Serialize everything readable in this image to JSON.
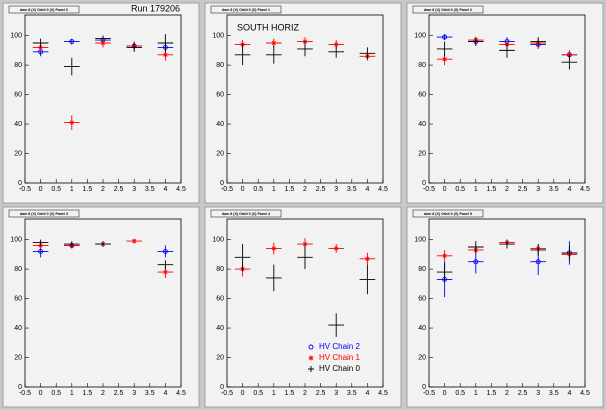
{
  "chart_data": [
    {
      "type": "errorbar",
      "title": "dam 8 (X) Orbit 0 (X) Panel 0",
      "annotations": [
        "Run 179206"
      ],
      "x": [
        0,
        1,
        2,
        3,
        4
      ],
      "xerr": 0.25,
      "xlim": [
        -0.5,
        4.5
      ],
      "xticks": [
        -0.5,
        0,
        0.5,
        1,
        1.5,
        2,
        2.5,
        3,
        3.5,
        4,
        4.5
      ],
      "ylim": [
        0,
        114
      ],
      "yticks": [
        0,
        20,
        40,
        60,
        80,
        100
      ],
      "legend": false,
      "series": [
        {
          "name": "HV Chain 2",
          "color": "#0000ff",
          "marker": "circle",
          "values": [
            89,
            96,
            97,
            93,
            92
          ],
          "errors": [
            3,
            2,
            2,
            3,
            4
          ]
        },
        {
          "name": "HV Chain 1",
          "color": "#ff0000",
          "marker": "star",
          "values": [
            92,
            41,
            95,
            93,
            87
          ],
          "errors": [
            3,
            5,
            3,
            3,
            4
          ]
        },
        {
          "name": "HV Chain 0",
          "color": "#000000",
          "marker": "none",
          "values": [
            95,
            79,
            98,
            92,
            95
          ],
          "errors": [
            3,
            6,
            2,
            3,
            6
          ]
        }
      ]
    },
    {
      "type": "errorbar",
      "title": "dam 8 (X) Orbit 0 (X) Panel 1",
      "annotations": [
        "SOUTH HORIZ"
      ],
      "x": [
        0,
        1,
        2,
        3,
        4
      ],
      "xerr": 0.25,
      "xlim": [
        -0.5,
        4.5
      ],
      "xticks": [
        -0.5,
        0,
        0.5,
        1,
        1.5,
        2,
        2.5,
        3,
        3.5,
        4,
        4.5
      ],
      "ylim": [
        0,
        114
      ],
      "yticks": [
        0,
        20,
        40,
        60,
        80,
        100
      ],
      "legend": false,
      "series": [
        {
          "name": "HV Chain 2",
          "color": "#0000ff",
          "marker": "circle",
          "values": [
            null,
            null,
            null,
            null,
            null
          ],
          "errors": [
            null,
            null,
            null,
            null,
            null
          ]
        },
        {
          "name": "HV Chain 1",
          "color": "#ff0000",
          "marker": "star",
          "values": [
            94,
            95,
            96,
            94,
            86
          ],
          "errors": [
            3,
            3,
            3,
            3,
            3
          ]
        },
        {
          "name": "HV Chain 0",
          "color": "#000000",
          "marker": "none",
          "values": [
            87,
            87,
            91,
            89,
            88
          ],
          "errors": [
            7,
            6,
            5,
            4,
            4
          ]
        }
      ]
    },
    {
      "type": "errorbar",
      "title": "dam 8 (X) Orbit 0 (X) Panel 2",
      "annotations": [],
      "x": [
        0,
        1,
        2,
        3,
        4
      ],
      "xerr": 0.25,
      "xlim": [
        -0.5,
        4.5
      ],
      "xticks": [
        -0.5,
        0,
        0.5,
        1,
        1.5,
        2,
        2.5,
        3,
        3.5,
        4,
        4.5
      ],
      "ylim": [
        0,
        114
      ],
      "yticks": [
        0,
        20,
        40,
        60,
        80,
        100
      ],
      "legend": false,
      "series": [
        {
          "name": "HV Chain 2",
          "color": "#0000ff",
          "marker": "circle",
          "values": [
            99,
            96,
            96,
            94,
            87
          ],
          "errors": [
            2,
            2,
            3,
            3,
            3
          ]
        },
        {
          "name": "HV Chain 1",
          "color": "#ff0000",
          "marker": "star",
          "values": [
            84,
            97,
            94,
            95,
            87
          ],
          "errors": [
            4,
            2,
            3,
            3,
            3
          ]
        },
        {
          "name": "HV Chain 0",
          "color": "#000000",
          "marker": "none",
          "values": [
            91,
            96,
            90,
            96,
            82
          ],
          "errors": [
            5,
            3,
            5,
            3,
            5
          ]
        }
      ]
    },
    {
      "type": "errorbar",
      "title": "dam 8 (X) Orbit 0 (X) Panel 3",
      "annotations": [],
      "x": [
        0,
        1,
        2,
        3,
        4
      ],
      "xerr": 0.25,
      "xlim": [
        -0.5,
        4.5
      ],
      "xticks": [
        -0.5,
        0,
        0.5,
        1,
        1.5,
        2,
        2.5,
        3,
        3.5,
        4,
        4.5
      ],
      "ylim": [
        0,
        114
      ],
      "yticks": [
        0,
        20,
        40,
        60,
        80,
        100
      ],
      "legend": false,
      "series": [
        {
          "name": "HV Chain 2",
          "color": "#0000ff",
          "marker": "circle",
          "values": [
            92,
            96,
            null,
            null,
            92
          ],
          "errors": [
            4,
            2,
            null,
            null,
            4
          ]
        },
        {
          "name": "HV Chain 1",
          "color": "#ff0000",
          "marker": "star",
          "values": [
            96,
            96,
            97,
            99,
            78
          ],
          "errors": [
            2,
            2,
            2,
            1,
            4
          ]
        },
        {
          "name": "HV Chain 0",
          "color": "#000000",
          "marker": "none",
          "values": [
            98,
            97,
            97,
            null,
            83
          ],
          "errors": [
            2,
            2,
            2,
            null,
            3
          ]
        }
      ]
    },
    {
      "type": "errorbar",
      "title": "dam 8 (X) Orbit 0 (X) Panel 4",
      "annotations": [],
      "x": [
        0,
        1,
        2,
        3,
        4
      ],
      "xerr": 0.25,
      "xlim": [
        -0.5,
        4.5
      ],
      "xticks": [
        -0.5,
        0,
        0.5,
        1,
        1.5,
        2,
        2.5,
        3,
        3.5,
        4,
        4.5
      ],
      "ylim": [
        0,
        114
      ],
      "yticks": [
        0,
        20,
        40,
        60,
        80,
        100
      ],
      "legend": true,
      "series": [
        {
          "name": "HV Chain 2",
          "color": "#0000ff",
          "marker": "circle",
          "values": [
            null,
            null,
            null,
            null,
            null
          ],
          "errors": [
            null,
            null,
            null,
            null,
            null
          ]
        },
        {
          "name": "HV Chain 1",
          "color": "#ff0000",
          "marker": "star",
          "values": [
            80,
            94,
            97,
            94,
            87
          ],
          "errors": [
            5,
            4,
            4,
            3,
            4
          ]
        },
        {
          "name": "HV Chain 0",
          "color": "#000000",
          "marker": "none",
          "values": [
            88,
            74,
            88,
            42,
            73
          ],
          "errors": [
            9,
            9,
            8,
            8,
            10
          ]
        }
      ]
    },
    {
      "type": "errorbar",
      "title": "dam 8 (X) Orbit 0 (X) Panel 5",
      "annotations": [],
      "x": [
        0,
        1,
        2,
        3,
        4
      ],
      "xerr": 0.25,
      "xlim": [
        -0.5,
        4.5
      ],
      "xticks": [
        -0.5,
        0,
        0.5,
        1,
        1.5,
        2,
        2.5,
        3,
        3.5,
        4,
        4.5
      ],
      "ylim": [
        0,
        114
      ],
      "yticks": [
        0,
        20,
        40,
        60,
        80,
        100
      ],
      "legend": false,
      "series": [
        {
          "name": "HV Chain 2",
          "color": "#0000ff",
          "marker": "circle",
          "values": [
            73,
            85,
            null,
            85,
            91
          ],
          "errors": [
            12,
            8,
            null,
            9,
            8
          ]
        },
        {
          "name": "HV Chain 1",
          "color": "#ff0000",
          "marker": "star",
          "values": [
            89,
            93,
            98,
            94,
            90
          ],
          "errors": [
            4,
            3,
            2,
            3,
            3
          ]
        },
        {
          "name": "HV Chain 0",
          "color": "#000000",
          "marker": "none",
          "values": [
            78,
            95,
            97,
            93,
            91
          ],
          "errors": [
            6,
            4,
            3,
            4,
            5
          ]
        }
      ]
    }
  ]
}
